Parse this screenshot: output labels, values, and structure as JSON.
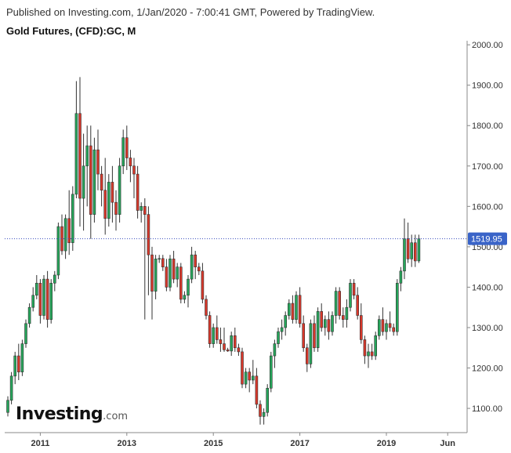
{
  "header": {
    "published": "Published on Investing.com, 1/Jan/2020 - 7:00:41 GMT, Powered by TradingView."
  },
  "logo": {
    "brand": "Investing",
    "domain": ".com"
  },
  "chart_data": {
    "type": "candlestick",
    "title": "Gold Futures, (CFD):GC, M",
    "ylim": [
      1040,
      2010
    ],
    "yticks": [
      1100,
      1200,
      1300,
      1400,
      1500,
      1600,
      1700,
      1800,
      1900,
      2000
    ],
    "ytick_labels": [
      "1100.00",
      "1200.00",
      "1300.00",
      "1400.00",
      "1500.00",
      "1600.00",
      "1700.00",
      "1800.00",
      "1900.00",
      "2000.00"
    ],
    "xticks": [
      {
        "label": "2011",
        "index": 9
      },
      {
        "label": "2013",
        "index": 33
      },
      {
        "label": "2015",
        "index": 57
      },
      {
        "label": "2017",
        "index": 81
      },
      {
        "label": "2019",
        "index": 105
      },
      {
        "label": "Jun",
        "index": 122
      }
    ],
    "current_price": 1519.95,
    "current_price_label": "1519.95",
    "colors": {
      "up": "#26a65b",
      "down": "#d9382b",
      "price_line": "#3a4fbf",
      "price_badge": "#3a64c8"
    },
    "candles": [
      [
        1090,
        1130,
        1080,
        1120
      ],
      [
        1120,
        1190,
        1110,
        1180
      ],
      [
        1180,
        1240,
        1160,
        1230
      ],
      [
        1230,
        1260,
        1170,
        1190
      ],
      [
        1190,
        1270,
        1180,
        1260
      ],
      [
        1260,
        1320,
        1250,
        1310
      ],
      [
        1310,
        1360,
        1300,
        1350
      ],
      [
        1350,
        1400,
        1340,
        1380
      ],
      [
        1380,
        1430,
        1370,
        1410
      ],
      [
        1410,
        1420,
        1310,
        1330
      ],
      [
        1330,
        1430,
        1320,
        1420
      ],
      [
        1420,
        1440,
        1300,
        1320
      ],
      [
        1320,
        1420,
        1310,
        1410
      ],
      [
        1410,
        1440,
        1390,
        1430
      ],
      [
        1430,
        1560,
        1420,
        1550
      ],
      [
        1550,
        1580,
        1480,
        1490
      ],
      [
        1490,
        1580,
        1470,
        1570
      ],
      [
        1570,
        1640,
        1480,
        1510
      ],
      [
        1510,
        1650,
        1490,
        1630
      ],
      [
        1630,
        1910,
        1620,
        1830
      ],
      [
        1830,
        1920,
        1550,
        1620
      ],
      [
        1620,
        1780,
        1540,
        1700
      ],
      [
        1700,
        1800,
        1600,
        1750
      ],
      [
        1750,
        1800,
        1520,
        1580
      ],
      [
        1580,
        1770,
        1560,
        1740
      ],
      [
        1740,
        1790,
        1640,
        1680
      ],
      [
        1680,
        1700,
        1600,
        1640
      ],
      [
        1640,
        1720,
        1530,
        1570
      ],
      [
        1570,
        1680,
        1550,
        1660
      ],
      [
        1660,
        1700,
        1560,
        1610
      ],
      [
        1610,
        1640,
        1540,
        1580
      ],
      [
        1580,
        1720,
        1560,
        1700
      ],
      [
        1700,
        1790,
        1680,
        1770
      ],
      [
        1770,
        1800,
        1690,
        1720
      ],
      [
        1720,
        1740,
        1660,
        1700
      ],
      [
        1700,
        1720,
        1620,
        1680
      ],
      [
        1680,
        1700,
        1570,
        1590
      ],
      [
        1590,
        1610,
        1560,
        1600
      ],
      [
        1600,
        1620,
        1320,
        1580
      ],
      [
        1580,
        1600,
        1380,
        1480
      ],
      [
        1480,
        1500,
        1320,
        1390
      ],
      [
        1390,
        1480,
        1370,
        1470
      ],
      [
        1470,
        1480,
        1460,
        1471
      ],
      [
        1471,
        1480,
        1440,
        1450
      ],
      [
        1450,
        1470,
        1390,
        1400
      ],
      [
        1400,
        1480,
        1390,
        1470
      ],
      [
        1470,
        1490,
        1410,
        1420
      ],
      [
        1420,
        1460,
        1400,
        1450
      ],
      [
        1450,
        1460,
        1360,
        1370
      ],
      [
        1370,
        1390,
        1360,
        1380
      ],
      [
        1380,
        1430,
        1350,
        1420
      ],
      [
        1420,
        1500,
        1410,
        1480
      ],
      [
        1480,
        1490,
        1420,
        1450
      ],
      [
        1450,
        1460,
        1430,
        1440
      ],
      [
        1440,
        1460,
        1360,
        1370
      ],
      [
        1370,
        1380,
        1320,
        1330
      ],
      [
        1330,
        1340,
        1250,
        1260
      ],
      [
        1260,
        1310,
        1250,
        1300
      ],
      [
        1300,
        1330,
        1260,
        1270
      ],
      [
        1270,
        1300,
        1240,
        1260
      ],
      [
        1260,
        1300,
        1240,
        1245
      ],
      [
        1245,
        1250,
        1240,
        1242
      ],
      [
        1242,
        1290,
        1230,
        1280
      ],
      [
        1280,
        1300,
        1240,
        1250
      ],
      [
        1250,
        1260,
        1230,
        1240
      ],
      [
        1240,
        1250,
        1150,
        1160
      ],
      [
        1160,
        1200,
        1150,
        1190
      ],
      [
        1190,
        1200,
        1140,
        1170
      ],
      [
        1170,
        1220,
        1160,
        1180
      ],
      [
        1180,
        1200,
        1100,
        1110
      ],
      [
        1110,
        1120,
        1060,
        1080
      ],
      [
        1080,
        1100,
        1060,
        1090
      ],
      [
        1090,
        1160,
        1080,
        1150
      ],
      [
        1150,
        1240,
        1140,
        1230
      ],
      [
        1230,
        1270,
        1200,
        1260
      ],
      [
        1260,
        1300,
        1250,
        1290
      ],
      [
        1290,
        1320,
        1270,
        1300
      ],
      [
        1300,
        1340,
        1280,
        1330
      ],
      [
        1330,
        1370,
        1320,
        1360
      ],
      [
        1360,
        1380,
        1310,
        1320
      ],
      [
        1320,
        1390,
        1310,
        1380
      ],
      [
        1380,
        1400,
        1300,
        1310
      ],
      [
        1310,
        1330,
        1240,
        1250
      ],
      [
        1250,
        1260,
        1190,
        1210
      ],
      [
        1210,
        1320,
        1200,
        1310
      ],
      [
        1310,
        1330,
        1240,
        1250
      ],
      [
        1250,
        1350,
        1240,
        1340
      ],
      [
        1340,
        1360,
        1290,
        1300
      ],
      [
        1300,
        1330,
        1280,
        1320
      ],
      [
        1320,
        1340,
        1270,
        1290
      ],
      [
        1290,
        1340,
        1280,
        1330
      ],
      [
        1330,
        1400,
        1310,
        1390
      ],
      [
        1390,
        1400,
        1320,
        1330
      ],
      [
        1330,
        1350,
        1300,
        1320
      ],
      [
        1320,
        1370,
        1300,
        1350
      ],
      [
        1350,
        1420,
        1340,
        1410
      ],
      [
        1410,
        1420,
        1370,
        1380
      ],
      [
        1380,
        1400,
        1320,
        1330
      ],
      [
        1330,
        1360,
        1260,
        1270
      ],
      [
        1270,
        1280,
        1210,
        1230
      ],
      [
        1230,
        1260,
        1200,
        1240
      ],
      [
        1240,
        1260,
        1220,
        1230
      ],
      [
        1230,
        1290,
        1220,
        1280
      ],
      [
        1280,
        1330,
        1270,
        1320
      ],
      [
        1320,
        1350,
        1280,
        1290
      ],
      [
        1290,
        1320,
        1270,
        1310
      ],
      [
        1310,
        1340,
        1290,
        1300
      ],
      [
        1300,
        1310,
        1280,
        1290
      ],
      [
        1290,
        1420,
        1280,
        1410
      ],
      [
        1410,
        1450,
        1390,
        1440
      ],
      [
        1440,
        1570,
        1420,
        1520
      ],
      [
        1520,
        1560,
        1460,
        1470
      ],
      [
        1470,
        1530,
        1450,
        1510
      ],
      [
        1510,
        1530,
        1450,
        1465
      ],
      [
        1465,
        1530,
        1460,
        1520
      ]
    ]
  }
}
